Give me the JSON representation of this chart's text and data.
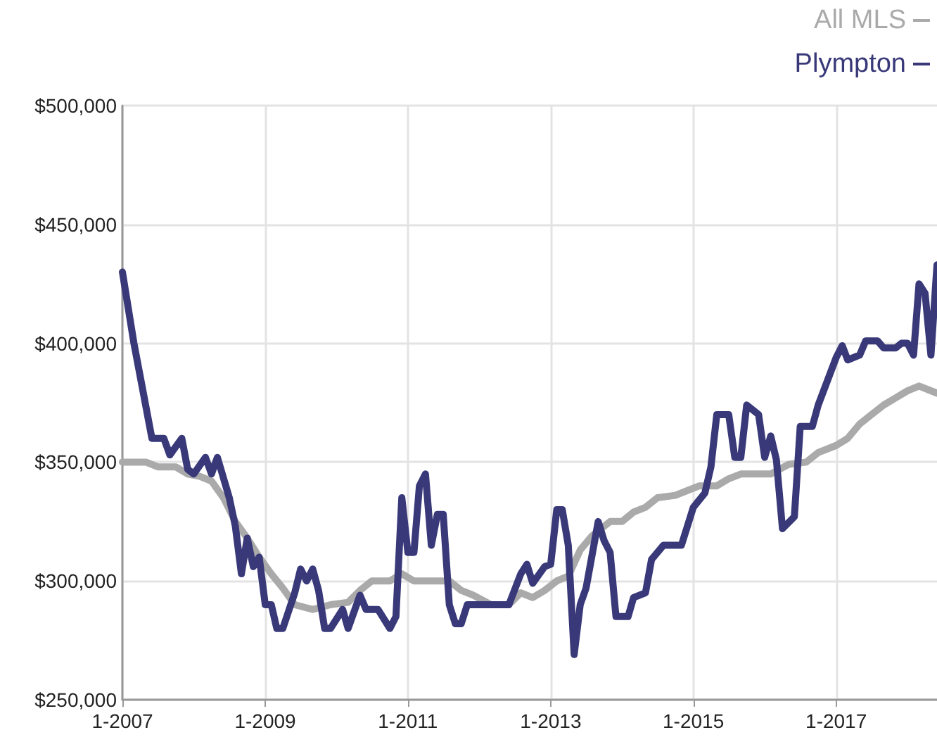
{
  "chart_data": {
    "type": "line",
    "series": [
      {
        "name": "All MLS",
        "color": "#aaaaaa",
        "x": [
          "2007-01",
          "2007-05",
          "2007-07",
          "2007-10",
          "2007-12",
          "2008-02",
          "2008-04",
          "2008-06",
          "2008-08",
          "2008-10",
          "2008-12",
          "2009-02",
          "2009-04",
          "2009-06",
          "2009-09",
          "2009-12",
          "2010-03",
          "2010-05",
          "2010-07",
          "2010-10",
          "2010-12",
          "2011-02",
          "2011-06",
          "2011-08",
          "2011-10",
          "2011-12",
          "2012-03",
          "2012-06",
          "2012-08",
          "2012-10",
          "2012-12",
          "2013-02",
          "2013-04",
          "2013-06",
          "2013-08",
          "2013-11",
          "2014-01",
          "2014-03",
          "2014-05",
          "2014-07",
          "2014-10",
          "2014-12",
          "2015-02",
          "2015-05",
          "2015-07",
          "2015-09",
          "2016-02",
          "2016-05",
          "2016-08",
          "2016-10",
          "2017-01",
          "2017-03",
          "2017-05",
          "2017-07",
          "2017-09",
          "2017-11",
          "2018-01",
          "2018-03",
          "2018-06"
        ],
        "values": [
          350000,
          350000,
          348000,
          348000,
          345000,
          344000,
          342000,
          335000,
          325000,
          318000,
          310000,
          303000,
          297000,
          290000,
          288000,
          290000,
          291000,
          296000,
          300000,
          300000,
          303000,
          300000,
          300000,
          300000,
          296000,
          294000,
          290000,
          290000,
          295000,
          293000,
          296000,
          300000,
          302000,
          313000,
          319000,
          325000,
          325000,
          329000,
          331000,
          335000,
          336000,
          338000,
          340000,
          340000,
          343000,
          345000,
          345000,
          349000,
          350000,
          354000,
          357000,
          360000,
          366000,
          370000,
          374000,
          377000,
          380000,
          382000,
          379000
        ]
      },
      {
        "name": "Plympton",
        "color": "#39397a",
        "x": [
          "2007-01",
          "2007-03",
          "2007-06",
          "2007-08",
          "2007-09",
          "2007-11",
          "2007-12",
          "2008-01",
          "2008-03",
          "2008-04",
          "2008-05",
          "2008-07",
          "2008-08",
          "2008-09",
          "2008-10",
          "2008-11",
          "2008-12",
          "2009-01",
          "2009-02",
          "2009-03",
          "2009-04",
          "2009-06",
          "2009-07",
          "2009-08",
          "2009-09",
          "2009-10",
          "2009-11",
          "2009-12",
          "2010-02",
          "2010-03",
          "2010-05",
          "2010-06",
          "2010-08",
          "2010-10",
          "2010-11",
          "2010-12",
          "2011-01",
          "2011-02",
          "2011-03",
          "2011-04",
          "2011-05",
          "2011-06",
          "2011-07",
          "2011-08",
          "2011-09",
          "2011-10",
          "2011-11",
          "2012-02",
          "2012-06",
          "2012-08",
          "2012-09",
          "2012-10",
          "2012-12",
          "2013-01",
          "2013-02",
          "2013-03",
          "2013-04",
          "2013-05",
          "2013-06",
          "2013-07",
          "2013-09",
          "2013-10",
          "2013-11",
          "2013-12",
          "2014-02",
          "2014-03",
          "2014-05",
          "2014-06",
          "2014-08",
          "2014-11",
          "2015-01",
          "2015-03",
          "2015-04",
          "2015-05",
          "2015-07",
          "2015-08",
          "2015-09",
          "2015-10",
          "2015-12",
          "2016-01",
          "2016-02",
          "2016-03",
          "2016-04",
          "2016-06",
          "2016-07",
          "2016-09",
          "2016-10",
          "2017-01",
          "2017-02",
          "2017-03",
          "2017-05",
          "2017-06",
          "2017-08",
          "2017-09",
          "2017-11",
          "2017-12",
          "2018-01",
          "2018-02",
          "2018-03",
          "2018-04",
          "2018-05",
          "2018-06"
        ],
        "values": [
          430000,
          400000,
          360000,
          360000,
          353000,
          360000,
          347000,
          345000,
          352000,
          345000,
          352000,
          335000,
          323000,
          303000,
          318000,
          306000,
          310000,
          290000,
          290000,
          280000,
          280000,
          295000,
          305000,
          300000,
          305000,
          296000,
          280000,
          280000,
          288000,
          280000,
          294000,
          288000,
          288000,
          280000,
          285000,
          335000,
          312000,
          312000,
          340000,
          345000,
          315000,
          328000,
          328000,
          290000,
          282000,
          282000,
          290000,
          290000,
          290000,
          303000,
          307000,
          299000,
          306000,
          307000,
          330000,
          330000,
          315000,
          269000,
          290000,
          297000,
          325000,
          317000,
          312000,
          285000,
          285000,
          293000,
          295000,
          309000,
          315000,
          315000,
          331000,
          337000,
          348000,
          370000,
          370000,
          352000,
          352000,
          374000,
          370000,
          352000,
          361000,
          351000,
          322000,
          327000,
          365000,
          365000,
          374000,
          394000,
          399000,
          393000,
          395000,
          401000,
          401000,
          398000,
          398000,
          400000,
          400000,
          395000,
          425000,
          421000,
          395000,
          433000
        ]
      }
    ],
    "xlim": [
      "2007-01",
      "2018-06"
    ],
    "xticks": [
      {
        "value": "2007-01",
        "label": "1-2007"
      },
      {
        "value": "2009-01",
        "label": "1-2009"
      },
      {
        "value": "2011-01",
        "label": "1-2011"
      },
      {
        "value": "2013-01",
        "label": "1-2013"
      },
      {
        "value": "2015-01",
        "label": "1-2015"
      },
      {
        "value": "2017-01",
        "label": "1-2017"
      }
    ],
    "ylim": [
      250000,
      500000
    ],
    "yticks": [
      {
        "value": 250000,
        "label": "$250,000"
      },
      {
        "value": 300000,
        "label": "$300,000"
      },
      {
        "value": 350000,
        "label": "$350,000"
      },
      {
        "value": 400000,
        "label": "$400,000"
      },
      {
        "value": 450000,
        "label": "$450,000"
      },
      {
        "value": 500000,
        "label": "$500,000"
      }
    ],
    "grid": true,
    "legend": "top right",
    "marker": "none",
    "line_style": "solid"
  }
}
